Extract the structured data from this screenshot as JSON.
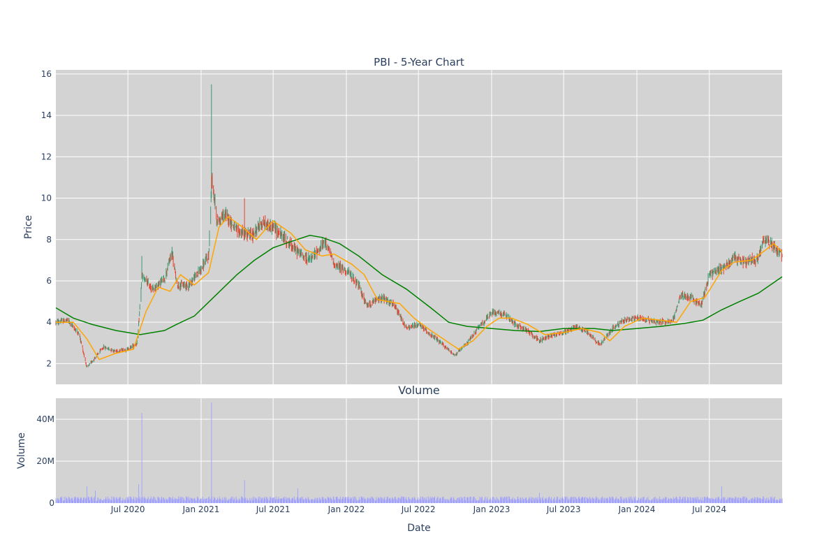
{
  "chart_data": [
    {
      "type": "candlestick",
      "title": "PBI - 5-Year Chart",
      "ylabel": "Price",
      "ylim": [
        1,
        16.2
      ],
      "yticks": [
        2,
        4,
        6,
        8,
        10,
        12,
        14,
        16
      ],
      "xlim": [
        "2020-01-02",
        "2024-12-31"
      ],
      "grid": true,
      "colors": {
        "up": "#3d9970",
        "down": "#e8422f",
        "ma_short": "#ffa500",
        "ma_long": "#008000",
        "plot_bg": "#d3d3d3",
        "grid": "#ffffff"
      },
      "series": [
        {
          "name": "price",
          "keypoints": [
            [
              "2020-01-02",
              4.0
            ],
            [
              "2020-02-01",
              4.1
            ],
            [
              "2020-03-01",
              3.4
            ],
            [
              "2020-03-20",
              1.8
            ],
            [
              "2020-04-10",
              2.3
            ],
            [
              "2020-05-01",
              2.8
            ],
            [
              "2020-06-01",
              2.6
            ],
            [
              "2020-07-01",
              2.7
            ],
            [
              "2020-07-25",
              3.0
            ],
            [
              "2020-08-05",
              6.2
            ],
            [
              "2020-09-01",
              5.6
            ],
            [
              "2020-10-01",
              6.1
            ],
            [
              "2020-10-20",
              7.4
            ],
            [
              "2020-11-01",
              5.8
            ],
            [
              "2020-12-01",
              5.8
            ],
            [
              "2021-01-01",
              6.6
            ],
            [
              "2021-01-20",
              7.2
            ],
            [
              "2021-01-28",
              11.0
            ],
            [
              "2021-02-10",
              8.9
            ],
            [
              "2021-03-05",
              9.2
            ],
            [
              "2021-04-01",
              8.4
            ],
            [
              "2021-05-10",
              8.2
            ],
            [
              "2021-06-01",
              8.8
            ],
            [
              "2021-07-01",
              8.6
            ],
            [
              "2021-08-01",
              8.0
            ],
            [
              "2021-09-01",
              7.4
            ],
            [
              "2021-10-01",
              7.0
            ],
            [
              "2021-11-10",
              7.9
            ],
            [
              "2021-12-01",
              6.8
            ],
            [
              "2022-01-01",
              6.5
            ],
            [
              "2022-02-01",
              5.8
            ],
            [
              "2022-02-20",
              4.8
            ],
            [
              "2022-04-01",
              5.2
            ],
            [
              "2022-05-01",
              4.8
            ],
            [
              "2022-06-01",
              3.7
            ],
            [
              "2022-07-01",
              3.9
            ],
            [
              "2022-08-01",
              3.4
            ],
            [
              "2022-09-01",
              2.9
            ],
            [
              "2022-10-01",
              2.4
            ],
            [
              "2022-11-01",
              3.0
            ],
            [
              "2022-12-01",
              3.8
            ],
            [
              "2023-01-05",
              4.5
            ],
            [
              "2023-02-01",
              4.4
            ],
            [
              "2023-03-01",
              3.9
            ],
            [
              "2023-04-01",
              3.6
            ],
            [
              "2023-05-01",
              3.1
            ],
            [
              "2023-06-01",
              3.4
            ],
            [
              "2023-07-01",
              3.5
            ],
            [
              "2023-08-01",
              3.8
            ],
            [
              "2023-09-01",
              3.5
            ],
            [
              "2023-10-01",
              2.9
            ],
            [
              "2023-11-01",
              3.7
            ],
            [
              "2023-12-01",
              4.1
            ],
            [
              "2024-01-01",
              4.2
            ],
            [
              "2024-02-01",
              4.1
            ],
            [
              "2024-03-01",
              4.0
            ],
            [
              "2024-04-01",
              4.1
            ],
            [
              "2024-04-20",
              5.3
            ],
            [
              "2024-05-15",
              5.2
            ],
            [
              "2024-06-10",
              4.8
            ],
            [
              "2024-07-01",
              6.3
            ],
            [
              "2024-08-01",
              6.6
            ],
            [
              "2024-09-01",
              7.1
            ],
            [
              "2024-10-01",
              6.9
            ],
            [
              "2024-11-01",
              7.1
            ],
            [
              "2024-11-15",
              8.0
            ],
            [
              "2024-12-01",
              7.9
            ],
            [
              "2024-12-31",
              7.2
            ]
          ],
          "spikes": [
            [
              "2021-01-27",
              15.5
            ],
            [
              "2020-08-05",
              7.2
            ],
            [
              "2021-04-20",
              10.0
            ],
            [
              "2021-06-20",
              9.9
            ],
            [
              "2024-11-10",
              8.8
            ],
            [
              "2020-04-05",
              3.6
            ]
          ]
        },
        {
          "name": "ma_short",
          "values": [
            [
              "2020-01-02",
              4.0
            ],
            [
              "2020-02-15",
              4.0
            ],
            [
              "2020-03-20",
              3.2
            ],
            [
              "2020-04-20",
              2.2
            ],
            [
              "2020-06-01",
              2.5
            ],
            [
              "2020-07-15",
              2.7
            ],
            [
              "2020-08-15",
              4.5
            ],
            [
              "2020-09-15",
              5.7
            ],
            [
              "2020-10-15",
              5.5
            ],
            [
              "2020-11-10",
              6.3
            ],
            [
              "2020-12-15",
              5.8
            ],
            [
              "2021-01-20",
              6.4
            ],
            [
              "2021-02-15",
              8.6
            ],
            [
              "2021-03-10",
              9.1
            ],
            [
              "2021-04-15",
              8.6
            ],
            [
              "2021-05-20",
              8.0
            ],
            [
              "2021-07-01",
              8.9
            ],
            [
              "2021-08-15",
              8.3
            ],
            [
              "2021-09-20",
              7.5
            ],
            [
              "2021-11-01",
              7.2
            ],
            [
              "2021-12-01",
              7.3
            ],
            [
              "2022-01-15",
              6.8
            ],
            [
              "2022-02-15",
              6.3
            ],
            [
              "2022-03-20",
              5.1
            ],
            [
              "2022-05-15",
              4.9
            ],
            [
              "2022-06-20",
              4.2
            ],
            [
              "2022-08-01",
              3.6
            ],
            [
              "2022-09-01",
              3.2
            ],
            [
              "2022-10-10",
              2.7
            ],
            [
              "2022-11-15",
              3.1
            ],
            [
              "2022-12-20",
              3.8
            ],
            [
              "2023-01-20",
              4.2
            ],
            [
              "2023-02-20",
              4.2
            ],
            [
              "2023-04-01",
              3.9
            ],
            [
              "2023-05-15",
              3.4
            ],
            [
              "2023-07-01",
              3.5
            ],
            [
              "2023-08-15",
              3.7
            ],
            [
              "2023-10-01",
              3.5
            ],
            [
              "2023-10-25",
              3.1
            ],
            [
              "2023-12-01",
              3.8
            ],
            [
              "2024-01-15",
              4.2
            ],
            [
              "2024-03-01",
              4.1
            ],
            [
              "2024-04-10",
              4.0
            ],
            [
              "2024-05-15",
              5.0
            ],
            [
              "2024-06-20",
              5.2
            ],
            [
              "2024-08-01",
              6.5
            ],
            [
              "2024-09-01",
              6.9
            ],
            [
              "2024-10-15",
              7.0
            ],
            [
              "2024-11-20",
              7.5
            ],
            [
              "2024-12-10",
              7.8
            ],
            [
              "2024-12-31",
              7.4
            ]
          ]
        },
        {
          "name": "ma_long",
          "values": [
            [
              "2020-01-02",
              4.7
            ],
            [
              "2020-02-15",
              4.2
            ],
            [
              "2020-04-01",
              3.9
            ],
            [
              "2020-06-01",
              3.6
            ],
            [
              "2020-08-01",
              3.4
            ],
            [
              "2020-10-01",
              3.6
            ],
            [
              "2020-11-01",
              3.9
            ],
            [
              "2020-12-15",
              4.3
            ],
            [
              "2021-02-01",
              5.2
            ],
            [
              "2021-04-01",
              6.3
            ],
            [
              "2021-05-15",
              7.0
            ],
            [
              "2021-07-01",
              7.6
            ],
            [
              "2021-08-15",
              7.9
            ],
            [
              "2021-10-01",
              8.2
            ],
            [
              "2021-11-01",
              8.1
            ],
            [
              "2021-12-15",
              7.8
            ],
            [
              "2022-02-01",
              7.2
            ],
            [
              "2022-04-01",
              6.3
            ],
            [
              "2022-06-01",
              5.6
            ],
            [
              "2022-08-01",
              4.7
            ],
            [
              "2022-09-15",
              4.0
            ],
            [
              "2022-11-01",
              3.8
            ],
            [
              "2023-01-01",
              3.7
            ],
            [
              "2023-03-01",
              3.6
            ],
            [
              "2023-05-01",
              3.55
            ],
            [
              "2023-07-01",
              3.7
            ],
            [
              "2023-09-15",
              3.7
            ],
            [
              "2023-11-01",
              3.6
            ],
            [
              "2024-01-01",
              3.7
            ],
            [
              "2024-03-01",
              3.8
            ],
            [
              "2024-05-01",
              3.95
            ],
            [
              "2024-06-15",
              4.1
            ],
            [
              "2024-08-01",
              4.6
            ],
            [
              "2024-09-15",
              5.0
            ],
            [
              "2024-11-01",
              5.4
            ],
            [
              "2024-12-31",
              6.2
            ]
          ]
        }
      ],
      "x_ticks": [
        {
          "date": "2020-07-01",
          "label": "Jul 2020"
        },
        {
          "date": "2021-01-01",
          "label": "Jan 2021"
        },
        {
          "date": "2021-07-01",
          "label": "Jul 2021"
        },
        {
          "date": "2022-01-01",
          "label": "Jan 2022"
        },
        {
          "date": "2022-07-01",
          "label": "Jul 2022"
        },
        {
          "date": "2023-01-01",
          "label": "Jan 2023"
        },
        {
          "date": "2023-07-01",
          "label": "Jul 2023"
        },
        {
          "date": "2024-01-01",
          "label": "Jan 2024"
        },
        {
          "date": "2024-07-01",
          "label": "Jul 2024"
        }
      ]
    },
    {
      "type": "bar",
      "title": "Volume",
      "xlabel": "Date",
      "ylabel": "Volume",
      "ylim": [
        0,
        50000000
      ],
      "yticks": [
        {
          "value": 0,
          "label": "0"
        },
        {
          "value": 20000000,
          "label": "20M"
        },
        {
          "value": 40000000,
          "label": "40M"
        }
      ],
      "bar_color": "#a0a0ff",
      "baseline": 2000000,
      "spikes": [
        [
          "2020-08-05",
          43000000
        ],
        [
          "2021-01-27",
          48000000
        ],
        [
          "2021-01-10",
          21000000
        ],
        [
          "2020-11-01",
          10000000
        ],
        [
          "2021-06-20",
          16000000
        ],
        [
          "2021-04-20",
          11000000
        ],
        [
          "2020-03-20",
          8000000
        ],
        [
          "2020-04-10",
          6000000
        ],
        [
          "2020-07-28",
          9000000
        ],
        [
          "2022-02-20",
          8000000
        ],
        [
          "2022-05-01",
          7000000
        ],
        [
          "2021-09-01",
          7000000
        ],
        [
          "2024-04-20",
          6000000
        ],
        [
          "2024-08-01",
          8000000
        ],
        [
          "2024-11-10",
          6000000
        ],
        [
          "2023-05-01",
          5000000
        ],
        [
          "2023-10-01",
          5000000
        ],
        [
          "2022-10-01",
          4000000
        ]
      ]
    }
  ]
}
